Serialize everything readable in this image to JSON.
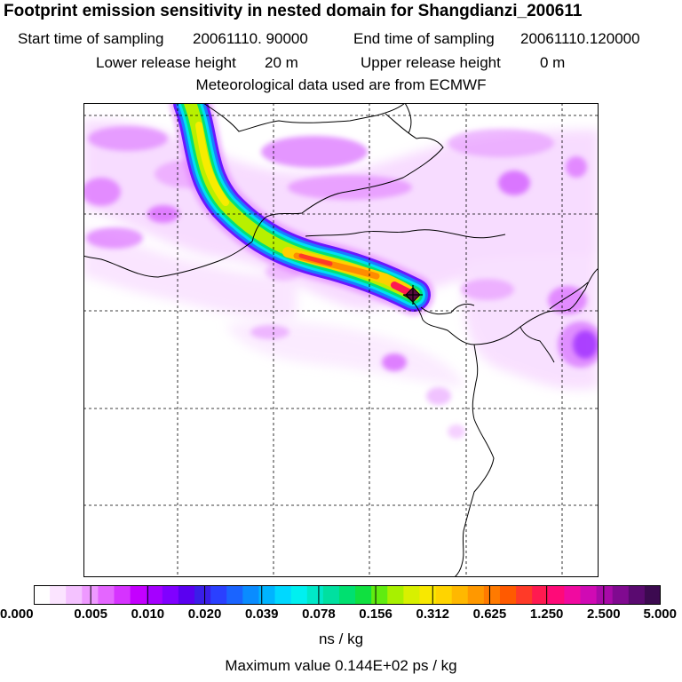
{
  "title": "Footprint emission sensitivity in nested domain for Shangdianzi_200611",
  "header": {
    "start_label": "Start time of sampling",
    "start_value": "20061110. 90000",
    "end_label": "End time of sampling",
    "end_value": "20061110.120000",
    "lower_label": "Lower release height",
    "lower_value": "20 m",
    "upper_label": "Upper release height",
    "upper_value": "0 m",
    "met_line": "Meteorological data used are from ECMWF"
  },
  "colorbar": {
    "tick_labels": [
      "0.000",
      "0.005",
      "0.010",
      "0.020",
      "0.039",
      "0.078",
      "0.156",
      "0.312",
      "0.625",
      "1.250",
      "2.500",
      "5.000"
    ],
    "colors": [
      "#ffffff",
      "#fbe4ff",
      "#f4c2ff",
      "#ee99ff",
      "#e466ff",
      "#d633ff",
      "#c400ff",
      "#a500ff",
      "#8000ff",
      "#5a00f0",
      "#3a1ee8",
      "#2a40ff",
      "#1a64ff",
      "#0a8cff",
      "#00b4ff",
      "#00d8ff",
      "#00f0f0",
      "#00e8c8",
      "#00e0a0",
      "#00e070",
      "#10e040",
      "#60ec10",
      "#a8f000",
      "#d8f000",
      "#f8e800",
      "#ffd400",
      "#ffb800",
      "#ff9800",
      "#ff7a00",
      "#ff5a00",
      "#ff3a28",
      "#ff1a50",
      "#ff0a78",
      "#f00aa0",
      "#d00ab4",
      "#a80aa8",
      "#800a90",
      "#5a0a70",
      "#3c0a50"
    ],
    "units": "ns / kg",
    "max_value_text": "Maximum value  0.144E+02 ps / kg"
  },
  "map": {
    "gridlines": "dashed",
    "receptor_marker": "diamond",
    "plume_peak_color": "#ff3a28",
    "weak_signal_color": "#e466ff"
  }
}
